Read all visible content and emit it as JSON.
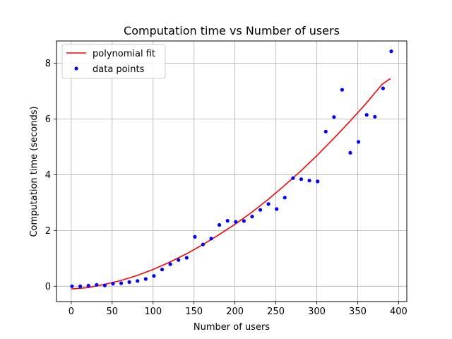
{
  "chart_data": {
    "type": "scatter",
    "title": "Computation time vs Number of users",
    "xlabel": "Number of users",
    "ylabel": "Computation time (seconds)",
    "xlim": [
      -18,
      410
    ],
    "ylim": [
      -0.55,
      8.8
    ],
    "xticks": [
      0,
      50,
      100,
      150,
      200,
      250,
      300,
      350,
      400
    ],
    "yticks": [
      0,
      2,
      4,
      6,
      8
    ],
    "grid": true,
    "legend_position": "top-left",
    "series": [
      {
        "name": "polynomial fit",
        "kind": "line",
        "color": "#ff0000",
        "x": [
          0,
          20,
          40,
          60,
          80,
          100,
          120,
          140,
          160,
          180,
          200,
          220,
          240,
          260,
          280,
          300,
          320,
          340,
          360,
          380,
          390
        ],
        "y": [
          -0.1,
          -0.05,
          0.06,
          0.2,
          0.38,
          0.6,
          0.86,
          1.15,
          1.48,
          1.84,
          2.22,
          2.64,
          3.1,
          3.6,
          4.12,
          4.68,
          5.28,
          5.9,
          6.55,
          7.25,
          7.45
        ]
      },
      {
        "name": "data points",
        "kind": "scatter",
        "color": "#0000ff",
        "x": [
          1,
          11,
          21,
          31,
          41,
          51,
          61,
          71,
          81,
          91,
          101,
          111,
          121,
          131,
          141,
          151,
          161,
          171,
          181,
          191,
          201,
          211,
          221,
          231,
          241,
          251,
          261,
          271,
          281,
          291,
          301,
          311,
          321,
          331,
          341,
          351,
          361,
          371,
          381,
          391
        ],
        "y": [
          0.0,
          0.0,
          0.02,
          0.05,
          0.03,
          0.09,
          0.11,
          0.15,
          0.19,
          0.26,
          0.37,
          0.6,
          0.79,
          0.94,
          1.02,
          1.77,
          1.5,
          1.71,
          2.2,
          2.35,
          2.31,
          2.34,
          2.5,
          2.74,
          2.95,
          2.77,
          3.18,
          3.88,
          3.84,
          3.79,
          3.76,
          5.55,
          6.07,
          7.05,
          4.79,
          5.18,
          6.15,
          6.08,
          7.1,
          8.43
        ]
      }
    ]
  }
}
